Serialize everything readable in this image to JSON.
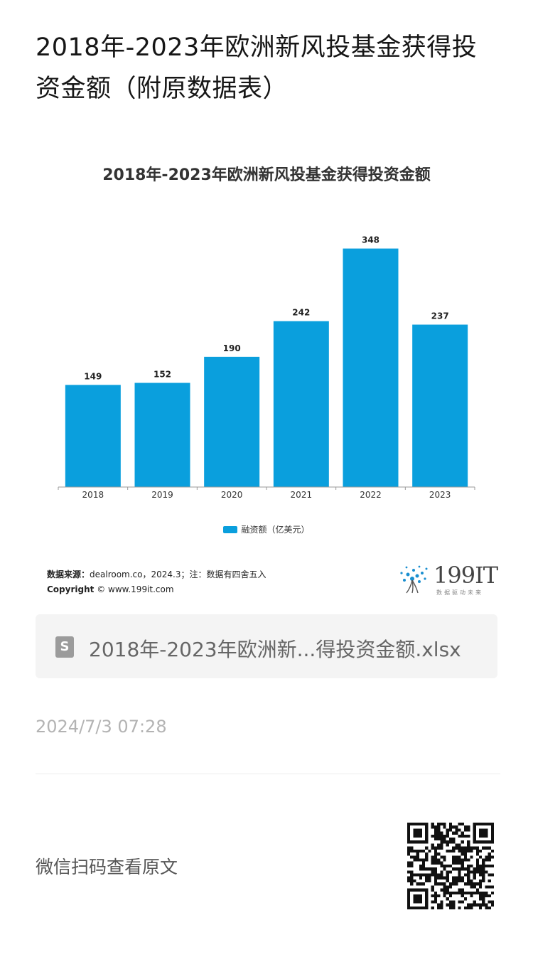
{
  "page_title": "2018年-2023年欧洲新风投基金获得投资金额（附原数据表）",
  "chart_data": {
    "type": "bar",
    "title": "2018年-2023年欧洲新风投基金获得投资金额",
    "categories": [
      "2018",
      "2019",
      "2020",
      "2021",
      "2022",
      "2023"
    ],
    "series": [
      {
        "name": "融资额（亿美元）",
        "values": [
          149,
          152,
          190,
          242,
          348,
          237
        ],
        "color": "#0a9fdd"
      }
    ],
    "data_labels": [
      "149",
      "152",
      "190",
      "242",
      "348",
      "237"
    ],
    "ylim": [
      0,
      360
    ],
    "grid": false,
    "legend_position": "bottom"
  },
  "source": {
    "label": "数据来源：",
    "text": "dealroom.co，2024.3；注：数据有四舍五入",
    "copyright_label": "Copyright",
    "copyright_text": "© www.199it.com"
  },
  "logo": {
    "text": "199IT",
    "sub": "数据驱动未来"
  },
  "file": {
    "icon": "spreadsheet-icon",
    "icon_letter": "S",
    "name": "2018年-2023年欧洲新...得投资金额.xlsx"
  },
  "timestamp": "2024/7/3 07:28",
  "footer": {
    "wechat_text": "微信扫码查看原文"
  }
}
